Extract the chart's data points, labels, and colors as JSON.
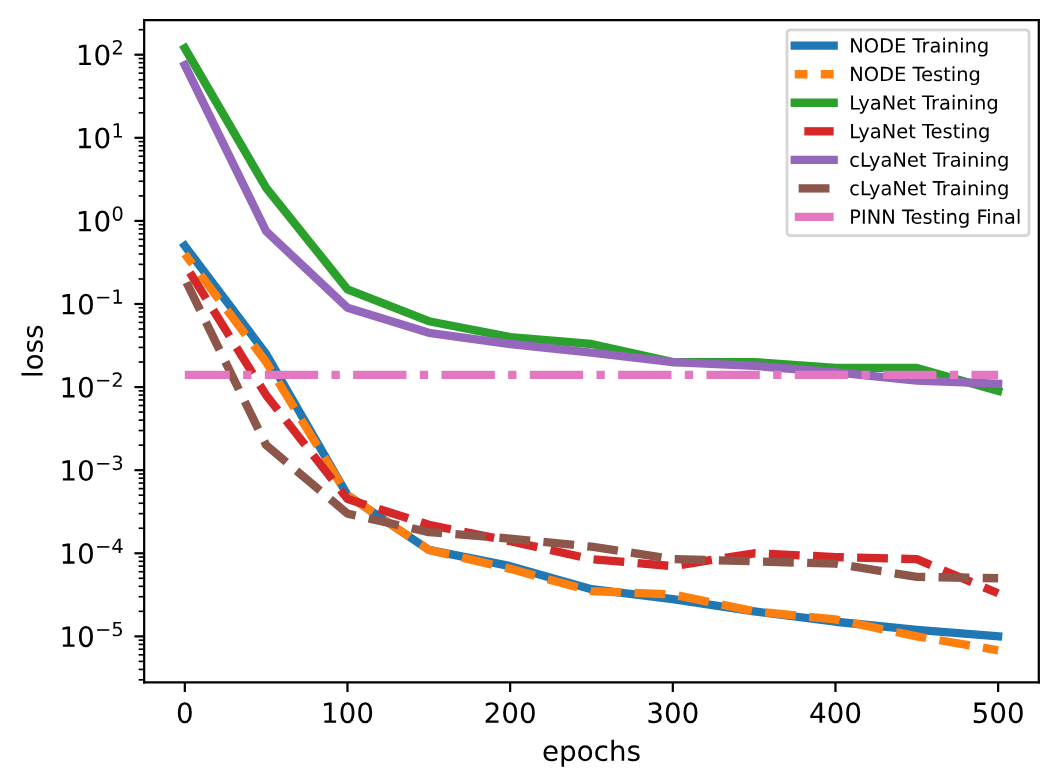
{
  "chart_data": {
    "type": "line",
    "xlabel": "epochs",
    "ylabel": "loss",
    "log": "y",
    "legend": "top right",
    "grid": false,
    "x": [
      0,
      50,
      100,
      150,
      200,
      250,
      300,
      350,
      400,
      450,
      500
    ],
    "xlim": [
      -25,
      525
    ],
    "xticks": [
      0,
      100,
      200,
      300,
      400,
      500
    ],
    "ylim": [
      2.8e-06,
      260
    ],
    "yticks": [
      {
        "value": 1e-05,
        "label": "10$^{−5}$"
      },
      {
        "value": 0.0001,
        "label": "10$^{−4}$"
      },
      {
        "value": 0.001,
        "label": "10$^{−3}$"
      },
      {
        "value": 0.01,
        "label": "10$^{−2}$"
      },
      {
        "value": 0.1,
        "label": "10$^{−1}$"
      },
      {
        "value": 1,
        "label": "10$^{0}$"
      },
      {
        "value": 10,
        "label": "10$^{1}$"
      },
      {
        "value": 100,
        "label": "10$^{2}$"
      }
    ],
    "series": [
      {
        "name": "NODE Training",
        "color": "#1f77b4",
        "line_style": "solid",
        "values": [
          0.5,
          0.025,
          0.0005,
          0.00011,
          7e-05,
          3.7e-05,
          2.8e-05,
          2e-05,
          1.5e-05,
          1.2e-05,
          1e-05
        ]
      },
      {
        "name": "NODE Testing",
        "color": "#ff7f0e",
        "line_style": "dashed",
        "values": [
          0.4,
          0.02,
          0.0005,
          0.00011,
          6.5e-05,
          3.5e-05,
          3.2e-05,
          2e-05,
          1.6e-05,
          1e-05,
          6.8e-06
        ]
      },
      {
        "name": "LyaNet Training",
        "color": "#2ca02c",
        "line_style": "solid",
        "values": [
          120,
          2.5,
          0.15,
          0.062,
          0.04,
          0.033,
          0.02,
          0.02,
          0.017,
          0.017,
          0.009
        ]
      },
      {
        "name": "LyaNet Testing",
        "color": "#d62728",
        "line_style": "dashed",
        "values": [
          0.3,
          0.008,
          0.00045,
          0.00022,
          0.00014,
          8.5e-05,
          7e-05,
          0.0001,
          9e-05,
          8.5e-05,
          3.3e-05
        ]
      },
      {
        "name": "cLyaNet Training",
        "color": "#9467bd",
        "line_style": "solid",
        "values": [
          75,
          0.75,
          0.09,
          0.045,
          0.033,
          0.026,
          0.02,
          0.018,
          0.015,
          0.012,
          0.011
        ]
      },
      {
        "name": "cLyaNet Training",
        "color": "#8c564b",
        "line_style": "dashed",
        "values": [
          0.2,
          0.002,
          0.0003,
          0.00018,
          0.00015,
          0.00012,
          8.5e-05,
          8e-05,
          7.5e-05,
          5.2e-05,
          5e-05
        ]
      },
      {
        "name": "PINN Testing Final",
        "color": "#e377c2",
        "line_style": "dashdot",
        "values": [
          0.014,
          0.014,
          0.014,
          0.014,
          0.014,
          0.014,
          0.014,
          0.014,
          0.014,
          0.014,
          0.014
        ]
      }
    ]
  }
}
